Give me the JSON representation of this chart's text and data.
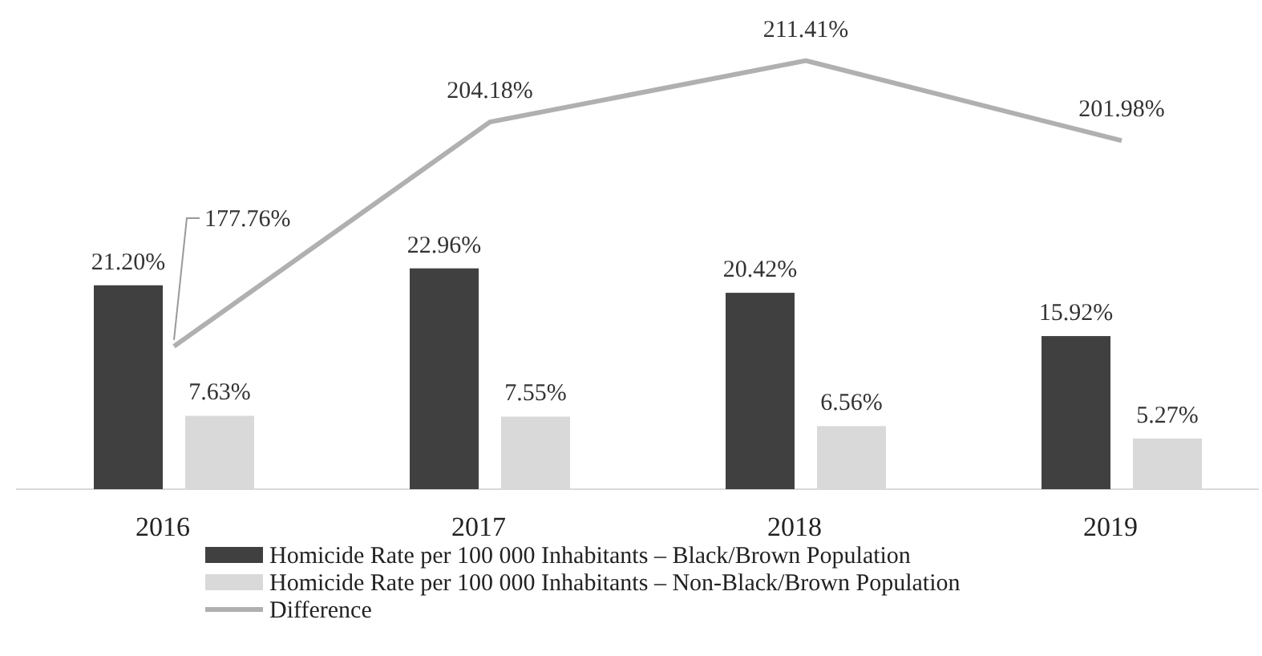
{
  "chart_data": {
    "type": "bar",
    "categories": [
      "2016",
      "2017",
      "2018",
      "2019"
    ],
    "series": [
      {
        "name": "Homicide Rate per 100 000 Inhabitants – Black/Brown Population",
        "color": "#404040",
        "values": [
          21.2,
          22.96,
          20.42,
          15.92
        ],
        "value_labels": [
          "21.20%",
          "22.96%",
          "20.42%",
          "15.92%"
        ]
      },
      {
        "name": "Homicide Rate per 100 000 Inhabitants – Non-Black/Brown Population",
        "color": "#d9d9d9",
        "values": [
          7.63,
          7.55,
          6.56,
          5.27
        ],
        "value_labels": [
          "7.63%",
          "7.55%",
          "6.56%",
          "5.27%"
        ]
      },
      {
        "name": "Difference",
        "type": "line",
        "axis": "y2",
        "color": "#b0b0b0",
        "values": [
          177.76,
          204.18,
          211.41,
          201.98
        ],
        "value_labels": [
          "177.76%",
          "204.18%",
          "211.41%",
          "201.98%"
        ]
      }
    ],
    "tick_labels": "x",
    "legend": "bottom",
    "grid": false,
    "marker": "none",
    "line_style": "solid"
  }
}
